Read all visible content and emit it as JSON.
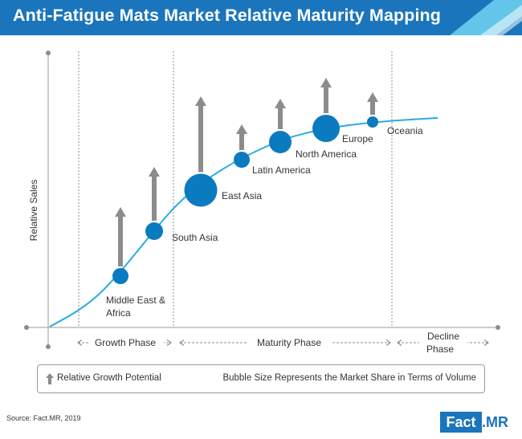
{
  "title": "Anti-Fatigue Mats Market Relative Maturity Mapping",
  "colors": {
    "banner_dark": "#1b75bc",
    "banner_light": "#63c5ea",
    "bubble": "#0b7bbf",
    "curve": "#29abe2",
    "arrow": "#8c8c8c"
  },
  "chart_data": {
    "type": "scatter",
    "title": "Anti-Fatigue Mats Market Relative Maturity Mapping",
    "ylabel": "Relative Sales",
    "xlabel": "",
    "grid": false,
    "phases": [
      {
        "label": "Growth Phase"
      },
      {
        "label": "Maturity Phase"
      },
      {
        "label": "Decline Phase"
      }
    ],
    "points": [
      {
        "label": "Middle East & Africa",
        "size": 2,
        "growth_potential": 3
      },
      {
        "label": "South Asia",
        "size": 2.5,
        "growth_potential": 3
      },
      {
        "label": "East Asia",
        "size": 5,
        "growth_potential": 4.5
      },
      {
        "label": "Latin America",
        "size": 2.5,
        "growth_potential": 1.2
      },
      {
        "label": "North America",
        "size": 3.5,
        "growth_potential": 1.4
      },
      {
        "label": "Europe",
        "size": 4,
        "growth_potential": 1.8
      },
      {
        "label": "Oceania",
        "size": 1.5,
        "growth_potential": 0.9
      }
    ]
  },
  "legend": {
    "arrow_text": "Relative Growth Potential",
    "size_text": "Bubble Size Represents the Market Share in Terms of Volume"
  },
  "source": "Source: Fact.MR, 2019",
  "logo": {
    "left": "Fact",
    "right": ".MR"
  }
}
